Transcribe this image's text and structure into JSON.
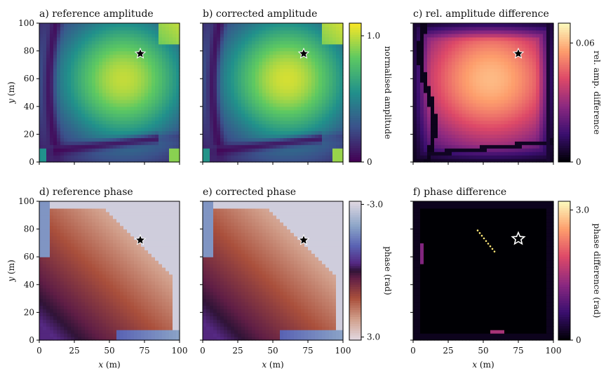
{
  "chart_data": {
    "type": "heatmap",
    "panels": [
      {
        "id": "a",
        "title": "a) reference amplitude",
        "quantity": "amplitude",
        "variant": "reference",
        "star": [
          72,
          78
        ],
        "star_style": "filled"
      },
      {
        "id": "b",
        "title": "b) corrected amplitude",
        "quantity": "amplitude",
        "variant": "corrected",
        "star": [
          72,
          78
        ],
        "star_style": "filled"
      },
      {
        "id": "c",
        "title": "c) rel. amplitude difference",
        "quantity": "amp_diff",
        "star": [
          75,
          78
        ],
        "star_style": "filled"
      },
      {
        "id": "d",
        "title": "d) reference phase",
        "quantity": "phase",
        "variant": "reference",
        "star": [
          72,
          72
        ],
        "star_style": "filled"
      },
      {
        "id": "e",
        "title": "e) corrected phase",
        "quantity": "phase",
        "variant": "corrected",
        "star": [
          72,
          72
        ],
        "star_style": "filled"
      },
      {
        "id": "f",
        "title": "f) phase difference",
        "quantity": "phase_diff",
        "star": [
          75,
          73
        ],
        "star_style": "hollow"
      }
    ],
    "xlabel_var": "x",
    "ylabel_var": "y",
    "axis_unit": " (m)",
    "xlim": [
      0,
      100
    ],
    "ylim": [
      0,
      100
    ],
    "xticks": [
      0,
      25,
      50,
      75,
      100
    ],
    "yticks": [
      0,
      20,
      40,
      60,
      80,
      100
    ],
    "colorbars": [
      {
        "for": "amplitude",
        "label": "normalised amplitude",
        "cmap": "viridis",
        "range": [
          0,
          1.1
        ],
        "ticks": [
          {
            "v": 0,
            "t": "0"
          },
          {
            "v": 1.0,
            "t": "1.0"
          }
        ]
      },
      {
        "for": "amp_diff",
        "label": "rel. amp. difference",
        "cmap": "magma",
        "range": [
          0,
          0.07
        ],
        "ticks": [
          {
            "v": 0,
            "t": "0"
          },
          {
            "v": 0.06,
            "t": "0.06"
          }
        ]
      },
      {
        "for": "phase",
        "label": "phase (rad)",
        "cmap": "twilight",
        "range": [
          -3.14,
          3.14
        ],
        "ticks": [
          {
            "v": 3.0,
            "t": "3.0"
          },
          {
            "v": -3.0,
            "t": "-3.0"
          }
        ]
      },
      {
        "for": "phase_diff",
        "label": "phase difference (rad)",
        "cmap": "magma",
        "range": [
          0,
          3.2
        ],
        "ticks": [
          {
            "v": 0,
            "t": "0"
          },
          {
            "v": 3.0,
            "t": "3.0"
          }
        ]
      }
    ]
  }
}
